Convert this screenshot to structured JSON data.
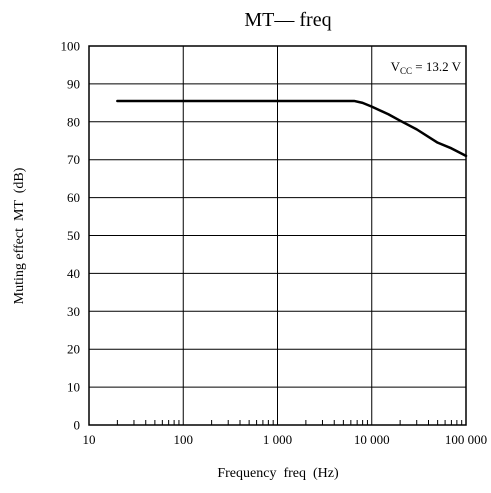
{
  "chart_data": {
    "type": "line",
    "title": "MT— freq",
    "xlabel": "Frequency  freq  (Hz)",
    "ylabel": "Muting effect  MT  (dB)",
    "x_scale": "log",
    "xlim": [
      10,
      100000
    ],
    "ylim": [
      0,
      100
    ],
    "grid": true,
    "x_ticks": [
      10,
      100,
      1000,
      10000,
      100000
    ],
    "x_tick_labels": [
      "10",
      "100",
      "1 000",
      "10 000",
      "100 000"
    ],
    "y_ticks": [
      0,
      10,
      20,
      30,
      40,
      50,
      60,
      70,
      80,
      90,
      100
    ],
    "y_tick_labels": [
      "0",
      "10",
      "20",
      "30",
      "40",
      "50",
      "60",
      "70",
      "80",
      "90",
      "100"
    ],
    "annotation": {
      "prefix": "V",
      "subscript": "CC",
      "suffix": " = 13.2 V"
    },
    "series": [
      {
        "x": [
          20,
          100,
          1000,
          5000,
          6500,
          8000,
          10000,
          15000,
          20000,
          30000,
          50000,
          70000,
          100000
        ],
        "y": [
          85.5,
          85.5,
          85.5,
          85.5,
          85.5,
          85,
          84,
          82,
          80.3,
          78,
          74.5,
          73,
          71
        ]
      }
    ]
  }
}
